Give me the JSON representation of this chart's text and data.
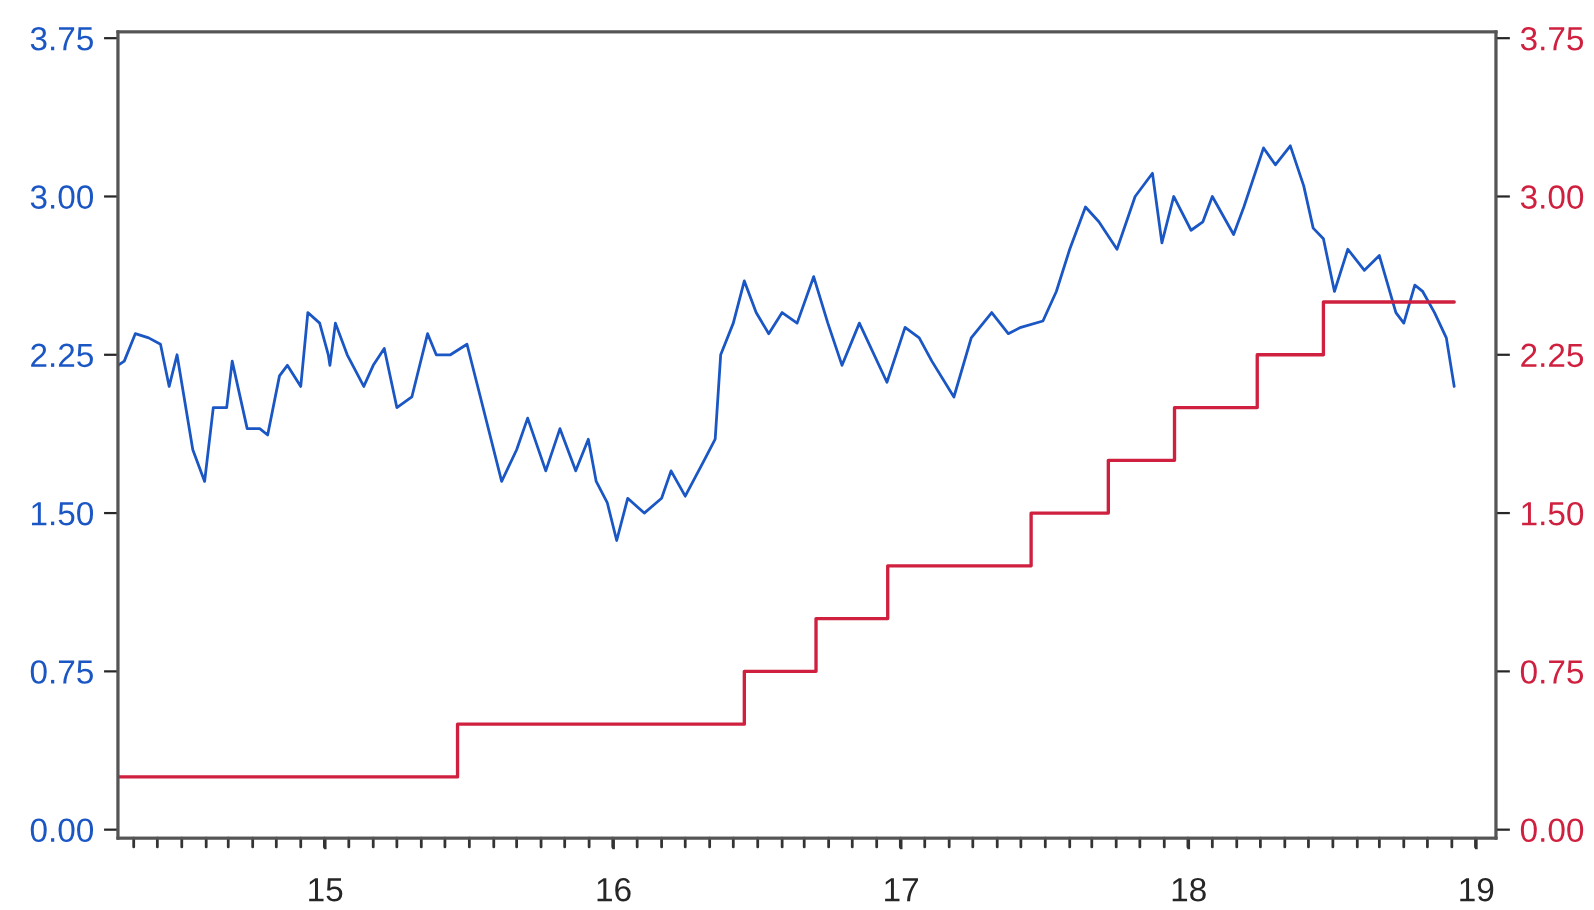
{
  "chart_data": {
    "type": "line",
    "xlim": [
      "2014-10-12",
      "2019-07-27"
    ],
    "xticks": [
      {
        "value": "2015-01-01",
        "label": null
      },
      {
        "value": "2015-07-02",
        "label": "15"
      },
      {
        "value": "2016-01-01",
        "label": null
      },
      {
        "value": "2016-07-02",
        "label": "16"
      },
      {
        "value": "2017-01-01",
        "label": null
      },
      {
        "value": "2017-07-02",
        "label": "17"
      },
      {
        "value": "2018-01-01",
        "label": null
      },
      {
        "value": "2018-07-02",
        "label": "18"
      },
      {
        "value": "2019-01-01",
        "label": null
      },
      {
        "value": "2019-07-02",
        "label": "19"
      }
    ],
    "ylim": [
      -0.04,
      3.78
    ],
    "yticks": [
      {
        "value": 0,
        "label": "0.00"
      },
      {
        "value": 0.75,
        "label": "0.75"
      },
      {
        "value": 1.5,
        "label": "1.50"
      },
      {
        "value": 2.25,
        "label": "2.25"
      },
      {
        "value": 3,
        "label": "3.00"
      },
      {
        "value": 3.75,
        "label": "3.75"
      }
    ],
    "y2lim": [
      -0.04,
      3.78
    ],
    "y2ticks": [
      {
        "value": 0,
        "label": "0.00"
      },
      {
        "value": 0.75,
        "label": "0.75"
      },
      {
        "value": 1.5,
        "label": "1.50"
      },
      {
        "value": 2.25,
        "label": "2.25"
      },
      {
        "value": 3,
        "label": "3.00"
      },
      {
        "value": 3.75,
        "label": "3.75"
      }
    ],
    "grid": false,
    "series": [
      {
        "color": "#1a56c4",
        "x": [
          "2014-10-12",
          "2014-10-20",
          "2014-11-03",
          "2014-11-20",
          "2014-12-05",
          "2014-12-16",
          "2014-12-26",
          "2015-01-15",
          "2015-01-30",
          "2015-02-10",
          "2015-02-27",
          "2015-03-06",
          "2015-03-25",
          "2015-04-10",
          "2015-04-20",
          "2015-05-05",
          "2015-05-15",
          "2015-06-01",
          "2015-06-10",
          "2015-06-25",
          "2015-07-06",
          "2015-07-08",
          "2015-07-15",
          "2015-07-30",
          "2015-08-20",
          "2015-09-01",
          "2015-09-15",
          "2015-10-01",
          "2015-10-20",
          "2015-11-09",
          "2015-11-20",
          "2015-12-08",
          "2015-12-29",
          "2016-01-15",
          "2016-02-11",
          "2016-03-01",
          "2016-03-15",
          "2016-04-07",
          "2016-04-25",
          "2016-05-15",
          "2016-05-31",
          "2016-06-10",
          "2016-06-24",
          "2016-07-06",
          "2016-07-20",
          "2016-08-10",
          "2016-09-01",
          "2016-09-13",
          "2016-10-01",
          "2016-10-25",
          "2016-11-08",
          "2016-11-15",
          "2016-12-01",
          "2016-12-15",
          "2016-12-30",
          "2017-01-15",
          "2017-02-01",
          "2017-02-20",
          "2017-03-13",
          "2017-03-31",
          "2017-04-18",
          "2017-05-10",
          "2017-06-14",
          "2017-07-07",
          "2017-07-25",
          "2017-08-10",
          "2017-09-07",
          "2017-09-29",
          "2017-10-25",
          "2017-11-15",
          "2017-12-01",
          "2017-12-29",
          "2018-01-15",
          "2018-02-01",
          "2018-02-21",
          "2018-03-10",
          "2018-04-02",
          "2018-04-25",
          "2018-05-17",
          "2018-05-29",
          "2018-06-13",
          "2018-07-05",
          "2018-07-20",
          "2018-08-01",
          "2018-08-28",
          "2018-09-10",
          "2018-10-05",
          "2018-10-20",
          "2018-11-08",
          "2018-11-25",
          "2018-12-07",
          "2018-12-20",
          "2019-01-03",
          "2019-01-20",
          "2019-02-10",
          "2019-03-01",
          "2019-03-22",
          "2019-04-01",
          "2019-04-15",
          "2019-04-25",
          "2019-05-10",
          "2019-05-25",
          "2019-06-04"
        ],
        "values": [
          2.2,
          2.22,
          2.35,
          2.33,
          2.3,
          2.1,
          2.25,
          1.8,
          1.65,
          2.0,
          2.0,
          2.22,
          1.9,
          1.9,
          1.87,
          2.15,
          2.2,
          2.1,
          2.45,
          2.4,
          2.25,
          2.2,
          2.4,
          2.25,
          2.1,
          2.2,
          2.28,
          2.0,
          2.05,
          2.35,
          2.25,
          2.25,
          2.3,
          2.05,
          1.65,
          1.8,
          1.95,
          1.7,
          1.9,
          1.7,
          1.85,
          1.65,
          1.55,
          1.37,
          1.57,
          1.5,
          1.57,
          1.7,
          1.58,
          1.75,
          1.85,
          2.25,
          2.4,
          2.6,
          2.45,
          2.35,
          2.45,
          2.4,
          2.62,
          2.4,
          2.2,
          2.4,
          2.12,
          2.38,
          2.33,
          2.22,
          2.05,
          2.33,
          2.45,
          2.35,
          2.38,
          2.41,
          2.55,
          2.75,
          2.95,
          2.88,
          2.75,
          3.0,
          3.11,
          2.78,
          3.0,
          2.84,
          2.88,
          3.0,
          2.82,
          2.95,
          3.23,
          3.15,
          3.24,
          3.05,
          2.85,
          2.8,
          2.55,
          2.75,
          2.65,
          2.72,
          2.45,
          2.4,
          2.58,
          2.55,
          2.45,
          2.33,
          2.1
        ]
      },
      {
        "type": "step",
        "axis": "y2",
        "color": "#d0203f",
        "x": [
          "2014-10-12",
          "2015-12-17",
          "2016-12-15",
          "2017-03-16",
          "2017-06-15",
          "2017-12-14",
          "2018-03-22",
          "2018-06-14",
          "2018-09-27",
          "2018-12-20",
          "2019-06-04"
        ],
        "values": [
          0.25,
          0.5,
          0.75,
          1.0,
          1.25,
          1.5,
          1.75,
          2.0,
          2.25,
          2.5,
          2.5
        ]
      }
    ]
  }
}
